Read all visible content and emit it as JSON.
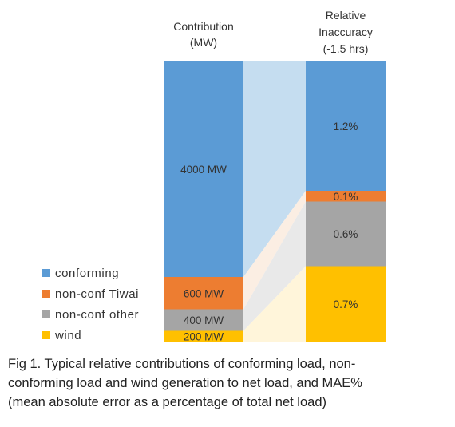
{
  "chart_data": {
    "type": "bar",
    "columns": [
      {
        "title_lines": [
          "Contribution",
          "(MW)"
        ]
      },
      {
        "title_lines": [
          "Relative",
          "Inaccuracy",
          "(-1.5 hrs)"
        ]
      }
    ],
    "series": [
      {
        "name": "conforming",
        "color": "#5B9BD5",
        "contribution_mw": 4000,
        "contribution_label": "4000 MW",
        "inaccuracy_pct": 1.2,
        "inaccuracy_label": "1.2%"
      },
      {
        "name": "non-conf  Tiwai",
        "color": "#ED7D31",
        "contribution_mw": 600,
        "contribution_label": "600 MW",
        "inaccuracy_pct": 0.1,
        "inaccuracy_label": "0.1%"
      },
      {
        "name": "non-conf  other",
        "color": "#A5A5A5",
        "contribution_mw": 400,
        "contribution_label": "400 MW",
        "inaccuracy_pct": 0.6,
        "inaccuracy_label": "0.6%"
      },
      {
        "name": "wind",
        "color": "#FFC000",
        "contribution_mw": 200,
        "contribution_label": "200 MW",
        "inaccuracy_pct": 0.7,
        "inaccuracy_label": "0.7%"
      }
    ],
    "connector_colors": [
      "#C5DDF0",
      "#FBEEE3",
      "#E9E9E9",
      "#FFF5DA"
    ]
  },
  "caption": {
    "lines": [
      "Fig 1. Typical relative contributions of conforming load, non-",
      "conforming load and wind generation to net load, and MAE%",
      "(mean absolute error as a percentage of total net load)"
    ]
  }
}
